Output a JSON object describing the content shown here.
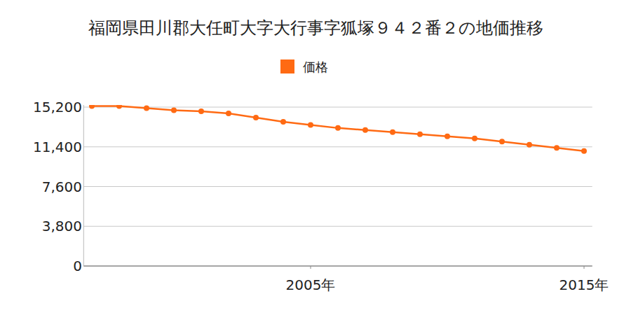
{
  "chart_data": {
    "type": "line",
    "title": "福岡県田川郡大任町大字大行事字狐塚９４２番２の地価推移",
    "x": [
      1997,
      1998,
      1999,
      2000,
      2001,
      2002,
      2003,
      2004,
      2005,
      2006,
      2007,
      2008,
      2009,
      2010,
      2011,
      2012,
      2013,
      2014,
      2015
    ],
    "series": [
      {
        "name": "価格",
        "color": "#ff6a13",
        "marker": "circle",
        "values": [
          15300,
          15300,
          15100,
          14900,
          14800,
          14600,
          14200,
          13800,
          13500,
          13200,
          13000,
          12800,
          12600,
          12400,
          12200,
          11900,
          11600,
          11300,
          11000
        ]
      }
    ],
    "xlim": [
      1996.7,
      2015.3
    ],
    "xticks": [
      {
        "value": 2005,
        "label": "2005年"
      },
      {
        "value": 2015,
        "label": "2015年"
      }
    ],
    "ylim": [
      0,
      15400
    ],
    "yticks": [
      0,
      {
        "value": 3800,
        "label": "3,800"
      },
      {
        "value": 7600,
        "label": "7,600"
      },
      {
        "value": 11400,
        "label": "11,400"
      },
      {
        "value": 15200,
        "label": "15,200"
      }
    ],
    "grid": true,
    "legend": "top"
  }
}
